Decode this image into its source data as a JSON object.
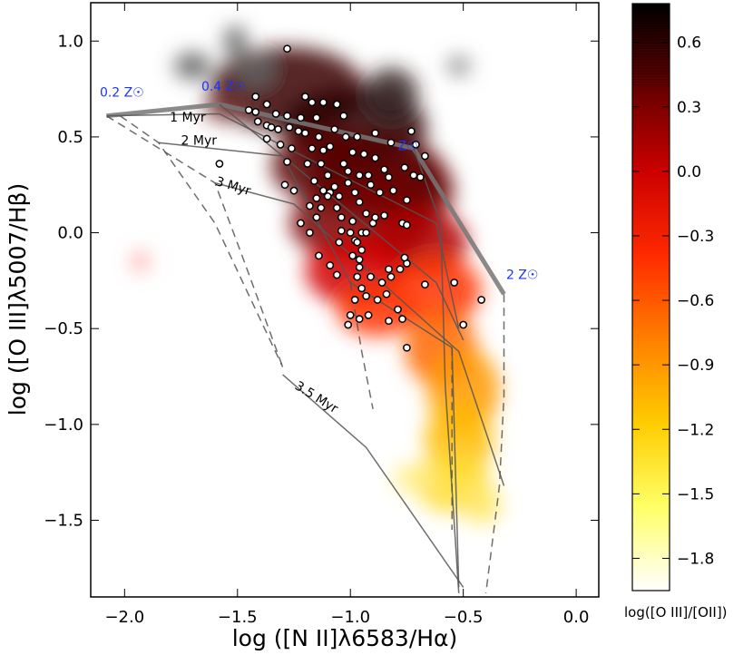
{
  "chart_data": {
    "type": "scatter",
    "xlabel": "log ([N II]λ6583/Hα)",
    "ylabel": "log ([O III]λ5007/Hβ)",
    "xlim": [
      -2.15,
      0.1
    ],
    "ylim": [
      -1.9,
      1.2
    ],
    "x_ticks": [
      -2.0,
      -1.5,
      -1.0,
      -0.5,
      0.0
    ],
    "y_ticks": [
      -1.5,
      -1.0,
      -0.5,
      0.0,
      0.5,
      1.0
    ],
    "x_tick_labels": [
      "−2.0",
      "−1.5",
      "−1.0",
      "−0.5",
      "0.0"
    ],
    "y_tick_labels": [
      "−1.5",
      "−1.0",
      "−0.5",
      "0.0",
      "0.5",
      "1.0"
    ],
    "colorbar": {
      "label": "log([O III]/[OII])",
      "range": [
        -1.95,
        0.78
      ],
      "ticks": [
        0.6,
        0.3,
        0.0,
        -0.3,
        -0.6,
        -0.9,
        -1.2,
        -1.5,
        -1.8
      ],
      "tick_labels": [
        "0.6",
        "0.3",
        "0.0",
        "−0.3",
        "−0.6",
        "−0.9",
        "−1.2",
        "−1.5",
        "−1.8"
      ],
      "colors": [
        "#ffffff",
        "#ffff66",
        "#ffcc00",
        "#ff7f00",
        "#ff2a00",
        "#cc0000",
        "#660000",
        "#000000"
      ]
    },
    "annotations": {
      "metallicity": [
        "0.2 Z☉",
        "0.4 Z☉",
        "Z☉",
        "2 Z☉"
      ],
      "ages": [
        "1 Myr",
        "2 Myr",
        "3 Myr",
        "3.5 Myr"
      ]
    },
    "series": [
      {
        "values": [
          [
            -1.28,
            0.96
          ],
          [
            -1.42,
            0.71
          ],
          [
            -1.37,
            0.67
          ],
          [
            -1.2,
            0.71
          ],
          [
            -1.17,
            0.68
          ],
          [
            -1.12,
            0.68
          ],
          [
            -1.06,
            0.67
          ],
          [
            -1.42,
            0.63
          ],
          [
            -1.33,
            0.62
          ],
          [
            -1.28,
            0.61
          ],
          [
            -1.22,
            0.6
          ],
          [
            -1.15,
            0.6
          ],
          [
            -1.03,
            0.61
          ],
          [
            -1.45,
            0.64
          ],
          [
            -1.41,
            0.58
          ],
          [
            -1.37,
            0.56
          ],
          [
            -1.35,
            0.55
          ],
          [
            -1.32,
            0.54
          ],
          [
            -1.27,
            0.55
          ],
          [
            -1.23,
            0.53
          ],
          [
            -1.2,
            0.52
          ],
          [
            -1.14,
            0.5
          ],
          [
            -1.07,
            0.54
          ],
          [
            -1.02,
            0.5
          ],
          [
            -0.97,
            0.5
          ],
          [
            -0.89,
            0.52
          ],
          [
            -0.82,
            0.47
          ],
          [
            -0.73,
            0.53
          ],
          [
            -0.71,
            0.46
          ],
          [
            -0.67,
            0.4
          ],
          [
            -0.69,
            0.29
          ],
          [
            -0.72,
            0.3
          ],
          [
            -1.37,
            0.49
          ],
          [
            -1.31,
            0.46
          ],
          [
            -1.26,
            0.44
          ],
          [
            -1.17,
            0.44
          ],
          [
            -1.12,
            0.43
          ],
          [
            -1.09,
            0.45
          ],
          [
            -0.99,
            0.42
          ],
          [
            -0.94,
            0.41
          ],
          [
            -0.89,
            0.39
          ],
          [
            -0.85,
            0.33
          ],
          [
            -1.28,
            0.37
          ],
          [
            -1.19,
            0.36
          ],
          [
            -1.13,
            0.36
          ],
          [
            -1.03,
            0.36
          ],
          [
            -1.01,
            0.32
          ],
          [
            -0.96,
            0.3
          ],
          [
            -0.92,
            0.3
          ],
          [
            -0.83,
            0.29
          ],
          [
            -0.76,
            0.34
          ],
          [
            -0.81,
            0.22
          ],
          [
            -1.16,
            0.27
          ],
          [
            -1.1,
            0.3
          ],
          [
            -1.01,
            0.26
          ],
          [
            -0.91,
            0.25
          ],
          [
            -0.87,
            0.21
          ],
          [
            -0.98,
            0.21
          ],
          [
            -1.58,
            0.36
          ],
          [
            -1.29,
            0.25
          ],
          [
            -1.25,
            0.22
          ],
          [
            -1.12,
            0.22
          ],
          [
            -1.09,
            0.21
          ],
          [
            -1.07,
            0.24
          ],
          [
            -1.15,
            0.18
          ],
          [
            -1.1,
            0.19
          ],
          [
            -1.05,
            0.19
          ],
          [
            -1.13,
            0.13
          ],
          [
            -1.06,
            0.13
          ],
          [
            -1.15,
            0.08
          ],
          [
            -1.04,
            0.08
          ],
          [
            -0.99,
            0.06
          ],
          [
            -0.9,
            0.05
          ],
          [
            -0.77,
            0.05
          ],
          [
            -0.75,
            0.04
          ],
          [
            -1.04,
            0.01
          ],
          [
            -1.0,
            0.0
          ],
          [
            -1.18,
            0.0
          ],
          [
            -0.98,
            -0.04
          ],
          [
            -0.95,
            0.0
          ],
          [
            -0.93,
            0.0
          ],
          [
            -0.97,
            -0.05
          ],
          [
            -1.05,
            -0.05
          ],
          [
            -0.95,
            -0.09
          ],
          [
            -1.14,
            -0.12
          ],
          [
            -0.99,
            -0.12
          ],
          [
            -0.96,
            -0.14
          ],
          [
            -0.83,
            -0.19
          ],
          [
            -0.78,
            -0.19
          ],
          [
            -0.75,
            -0.16
          ],
          [
            -0.76,
            -0.13
          ],
          [
            -1.09,
            -0.17
          ],
          [
            -0.96,
            -0.18
          ],
          [
            -1.06,
            -0.22
          ],
          [
            -0.97,
            -0.23
          ],
          [
            -0.91,
            -0.23
          ],
          [
            -0.86,
            -0.26
          ],
          [
            -0.95,
            -0.29
          ],
          [
            -0.82,
            -0.23
          ],
          [
            -0.67,
            -0.27
          ],
          [
            -0.54,
            -0.26
          ],
          [
            -0.98,
            -0.35
          ],
          [
            -0.88,
            -0.35
          ],
          [
            -0.84,
            -0.32
          ],
          [
            -0.93,
            -0.33
          ],
          [
            -1.0,
            -0.43
          ],
          [
            -0.96,
            -0.45
          ],
          [
            -0.92,
            -0.43
          ],
          [
            -0.83,
            -0.46
          ],
          [
            -1.01,
            -0.48
          ],
          [
            -0.79,
            -0.4
          ],
          [
            -0.77,
            -0.45
          ],
          [
            -0.75,
            -0.6
          ],
          [
            -0.5,
            -0.48
          ],
          [
            -0.42,
            -0.35
          ],
          [
            -0.75,
            0.17
          ],
          [
            -0.96,
            0.16
          ],
          [
            -0.93,
            0.1
          ],
          [
            -0.89,
            0.08
          ],
          [
            -0.85,
            0.09
          ],
          [
            -1.22,
            0.05
          ],
          [
            -1.18,
            0.14
          ]
        ]
      }
    ]
  }
}
